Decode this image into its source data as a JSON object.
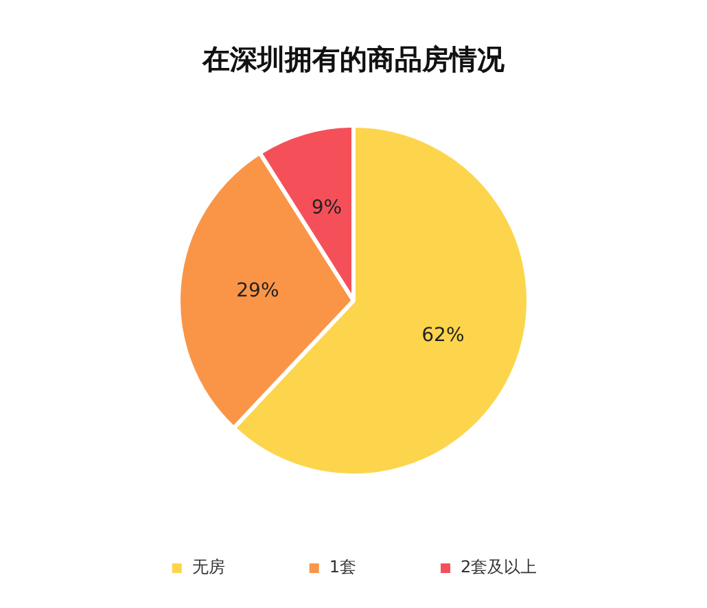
{
  "chart_data": {
    "type": "pie",
    "title": "在深圳拥有的商品房情况",
    "categories": [
      "无房",
      "1套",
      "2套及以上"
    ],
    "values": [
      62,
      29,
      9
    ],
    "colors": [
      "#fdd54c",
      "#fa9548",
      "#f5505a"
    ],
    "value_labels": [
      "62%",
      "29%",
      "9%"
    ],
    "legend": "bottom"
  }
}
